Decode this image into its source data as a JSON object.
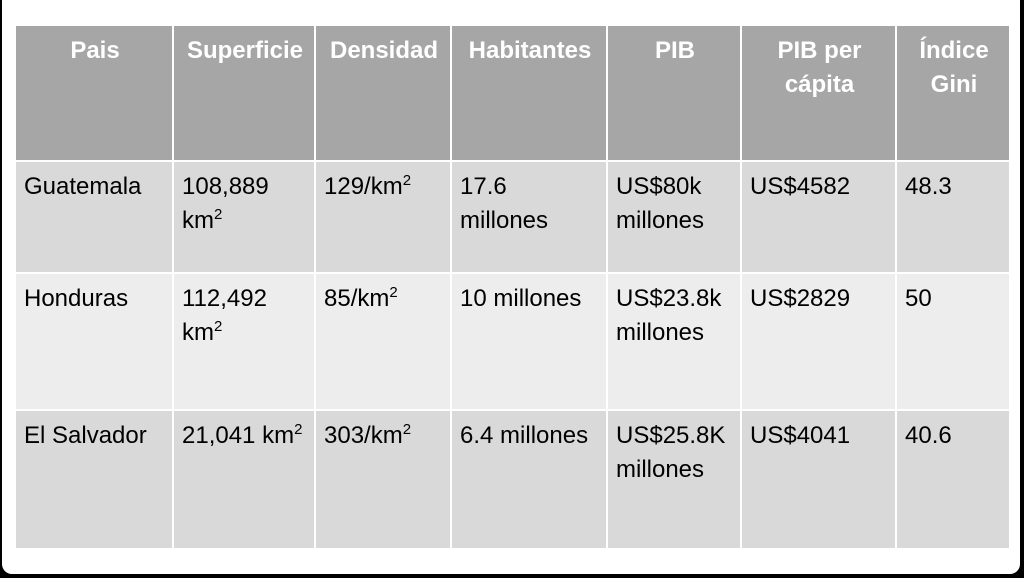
{
  "table": {
    "headers": [
      "Pais",
      "Superficie",
      "Densidad",
      "Habitantes",
      "PIB",
      "PIB per cápita",
      "Índice Gini"
    ],
    "rows": [
      {
        "pais": "Guatemala",
        "superficie": "108,889 km",
        "superficie_exp": "2",
        "densidad": "129/km",
        "densidad_exp": "2",
        "habitantes": "17.6 millones",
        "pib": "US$80k millones",
        "pib_per_capita": "US$4582",
        "gini": "48.3"
      },
      {
        "pais": "Honduras",
        "superficie": "112,492 km",
        "superficie_exp": "2",
        "densidad": "85/km",
        "densidad_exp": "2",
        "habitantes": "10 millones",
        "pib": "US$23.8k millones",
        "pib_per_capita": "US$2829",
        "gini": "50"
      },
      {
        "pais": "El Salvador",
        "superficie": "21,041 km",
        "superficie_exp": "2",
        "densidad": "303/km",
        "densidad_exp": "2",
        "habitantes": "6.4 millones",
        "pib": "US$25.8K millones",
        "pib_per_capita": "US$4041",
        "gini": "40.6"
      }
    ]
  }
}
